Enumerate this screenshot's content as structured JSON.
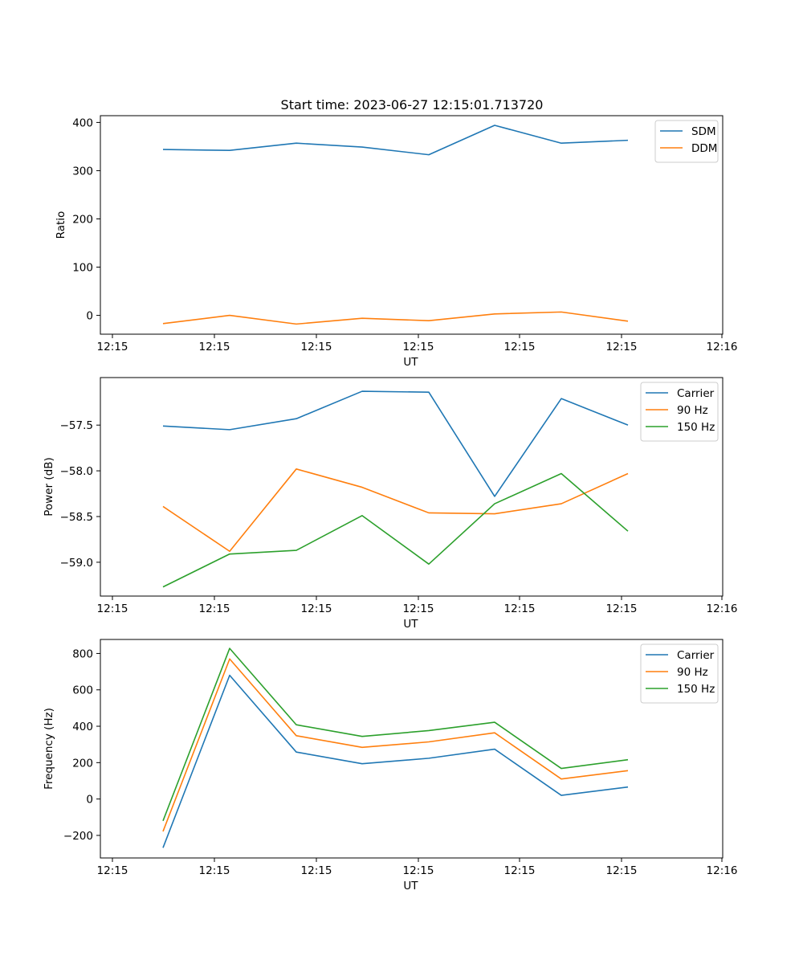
{
  "title": "Start time: 2023-06-27 12:15:01.713720",
  "colors": {
    "blue": "#1f77b4",
    "orange": "#ff7f0e",
    "green": "#2ca02c"
  },
  "chart_data": [
    {
      "type": "line",
      "xlabel": "UT",
      "ylabel": "Ratio",
      "x_tick_labels": [
        "12:15",
        "12:15",
        "12:15",
        "12:15",
        "12:15",
        "12:15",
        "12:15",
        "12:16"
      ],
      "y_ticks": [
        0,
        100,
        200,
        300,
        400
      ],
      "y_tick_labels": [
        "0",
        "100",
        "200",
        "300",
        "400"
      ],
      "ylim": [
        -39,
        414
      ],
      "legend": "top-right",
      "grid": false,
      "series": [
        {
          "name": "SDM",
          "color": "#1f77b4",
          "values": [
            344,
            342,
            357,
            349,
            333,
            394,
            357,
            363
          ]
        },
        {
          "name": "DDM",
          "color": "#ff7f0e",
          "values": [
            -17,
            0,
            -18,
            -6,
            -11,
            3,
            7,
            -12
          ]
        }
      ]
    },
    {
      "type": "line",
      "xlabel": "UT",
      "ylabel": "Power (dB)",
      "x_tick_labels": [
        "12:15",
        "12:15",
        "12:15",
        "12:15",
        "12:15",
        "12:15",
        "12:15",
        "12:16"
      ],
      "y_ticks": [
        -57.5,
        -58.0,
        -58.5,
        -59.0
      ],
      "y_tick_labels": [
        "−57.5",
        "−58.0",
        "−58.5",
        "−59.0"
      ],
      "ylim": [
        -59.37,
        -56.98
      ],
      "legend": "top-right",
      "grid": false,
      "series": [
        {
          "name": "Carrier",
          "color": "#1f77b4",
          "values": [
            -57.51,
            -57.55,
            -57.43,
            -57.13,
            -57.14,
            -58.28,
            -57.21,
            -57.5
          ]
        },
        {
          "name": "90 Hz",
          "color": "#ff7f0e",
          "values": [
            -58.39,
            -58.88,
            -57.98,
            -58.18,
            -58.46,
            -58.47,
            -58.36,
            -58.03
          ]
        },
        {
          "name": "150 Hz",
          "color": "#2ca02c",
          "values": [
            -59.27,
            -58.91,
            -58.87,
            -58.49,
            -59.02,
            -58.36,
            -58.03,
            -58.66
          ]
        }
      ]
    },
    {
      "type": "line",
      "xlabel": "UT",
      "ylabel": "Frequency (Hz)",
      "x_tick_labels": [
        "12:15",
        "12:15",
        "12:15",
        "12:15",
        "12:15",
        "12:15",
        "12:15",
        "12:16"
      ],
      "y_ticks": [
        -200,
        0,
        200,
        400,
        600,
        800
      ],
      "y_tick_labels": [
        "−200",
        "0",
        "200",
        "400",
        "600",
        "800"
      ],
      "ylim": [
        -324,
        877
      ],
      "legend": "top-right",
      "grid": false,
      "series": [
        {
          "name": "Carrier",
          "color": "#1f77b4",
          "values": [
            -268,
            680,
            258,
            194,
            224,
            274,
            20,
            66
          ]
        },
        {
          "name": "90 Hz",
          "color": "#ff7f0e",
          "values": [
            -178,
            770,
            348,
            284,
            314,
            364,
            110,
            156
          ]
        },
        {
          "name": "150 Hz",
          "color": "#2ca02c",
          "values": [
            -120,
            828,
            408,
            344,
            376,
            422,
            168,
            216
          ]
        }
      ]
    }
  ]
}
